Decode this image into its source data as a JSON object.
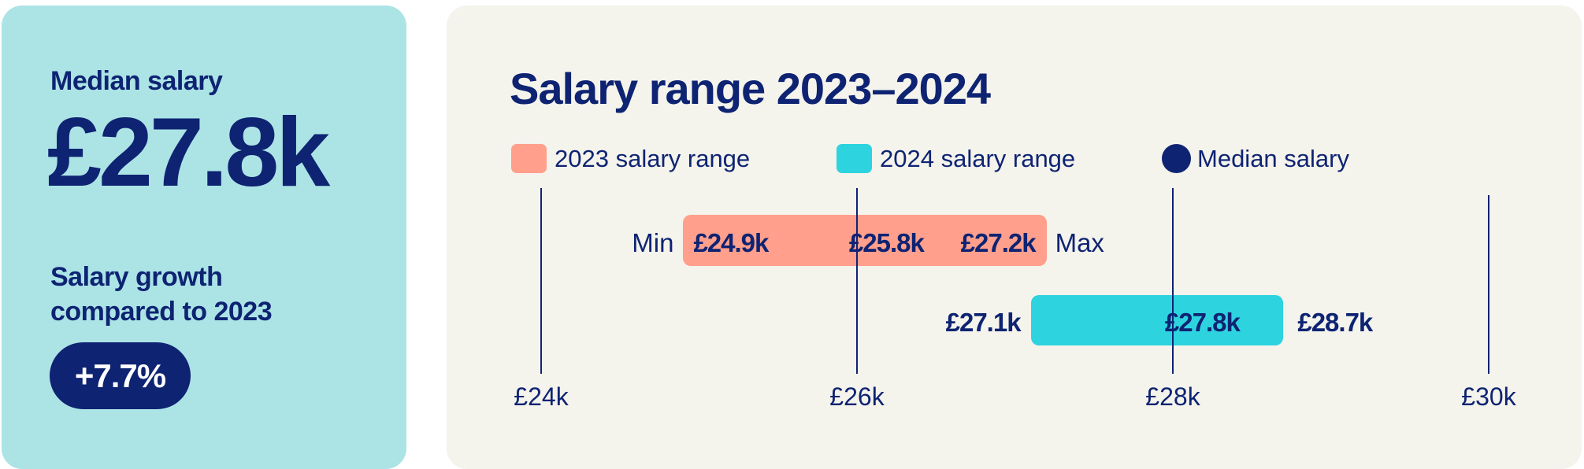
{
  "summary": {
    "median_label": "Median salary",
    "median_value": "£27.8k",
    "growth_label_line1": "Salary growth",
    "growth_label_line2": "compared to 2023",
    "growth_value": "+7.7%"
  },
  "colors": {
    "navy": "#0e2372",
    "range_2023": "#ff9f8c",
    "range_2024": "#2dd3df",
    "summary_bg": "#ace4e6",
    "chart_bg": "#f4f3ec"
  },
  "chart_data": {
    "type": "range-bar",
    "title": "Salary range 2023–2024",
    "legend": [
      {
        "label": "2023 salary range",
        "color": "#ff9f8c",
        "shape": "square"
      },
      {
        "label": "2024 salary range",
        "color": "#2dd3df",
        "shape": "square"
      },
      {
        "label": "Median salary",
        "color": "#0e2372",
        "shape": "circle"
      }
    ],
    "legend_placement": "top",
    "xlim": [
      24,
      30
    ],
    "xticks": [
      {
        "value": 24,
        "label": "£24k"
      },
      {
        "value": 26,
        "label": "£26k"
      },
      {
        "value": 28,
        "label": "£28k"
      },
      {
        "value": 30,
        "label": "£30k"
      }
    ],
    "grid": true,
    "min_label": "Min",
    "max_label": "Max",
    "series": [
      {
        "year": "2023",
        "min": 24.9,
        "median": 25.8,
        "max": 27.2,
        "min_label": "£24.9k",
        "median_label": "£25.8k",
        "max_label": "£27.2k",
        "color": "#ff9f8c"
      },
      {
        "year": "2024",
        "min": 27.1,
        "median": 27.8,
        "max": 28.7,
        "min_label": "£27.1k",
        "median_label": "£27.8k",
        "max_label": "£28.7k",
        "color": "#2dd3df"
      }
    ]
  }
}
